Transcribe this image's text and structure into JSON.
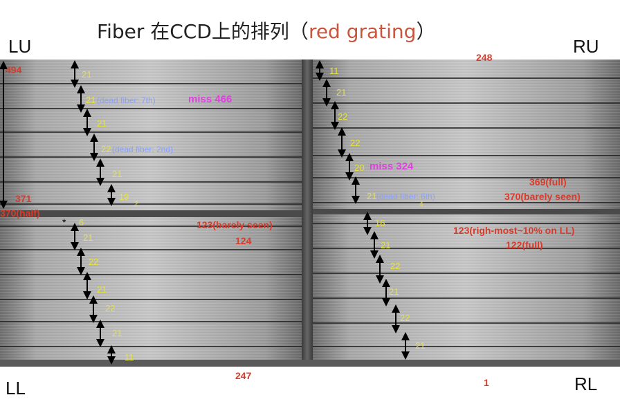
{
  "title": {
    "main": "Fiber 在CCD上的排列（",
    "sub": "red grating",
    "close": "）"
  },
  "corners": {
    "lu": "LU",
    "ru": "RU",
    "ll": "LL",
    "rl": "RL"
  },
  "counts": {
    "lu": [
      "21",
      "21",
      "21",
      "22",
      "21",
      "19"
    ],
    "lu_small": "2",
    "ru": [
      "11",
      "21",
      "22",
      "22",
      "20",
      "21"
    ],
    "ru_small": "4",
    "ll": [
      "6",
      "21",
      "22",
      "21",
      "22",
      "21",
      "11"
    ],
    "rl": [
      "16",
      "21",
      "22",
      "21",
      "22",
      "21"
    ]
  },
  "dead_notes": {
    "lu1": "(dead fiber: 7th)",
    "lu2": "(dead fiber: 2nd)",
    "ru": "(dead fiber: 6th)"
  },
  "miss": {
    "lu": "miss 466",
    "ru": "miss 324"
  },
  "fiber_ids": {
    "n494": "494",
    "n371": "371",
    "n370": "370(half)",
    "n248": "248",
    "n369": "369(full)",
    "n370b": "370(barely seen)",
    "n123a": "123(barely seen)",
    "n124": "124",
    "n123b": "123(righ-most~10% on LL)",
    "n122": "122(full)",
    "n247": "247",
    "n1": "1"
  },
  "colors": {
    "count": "#e8e33c",
    "dead": "#8aa2ff",
    "fiber_id": "#d93b2b",
    "miss": "#e040e0",
    "title_accent": "#c8553d"
  }
}
